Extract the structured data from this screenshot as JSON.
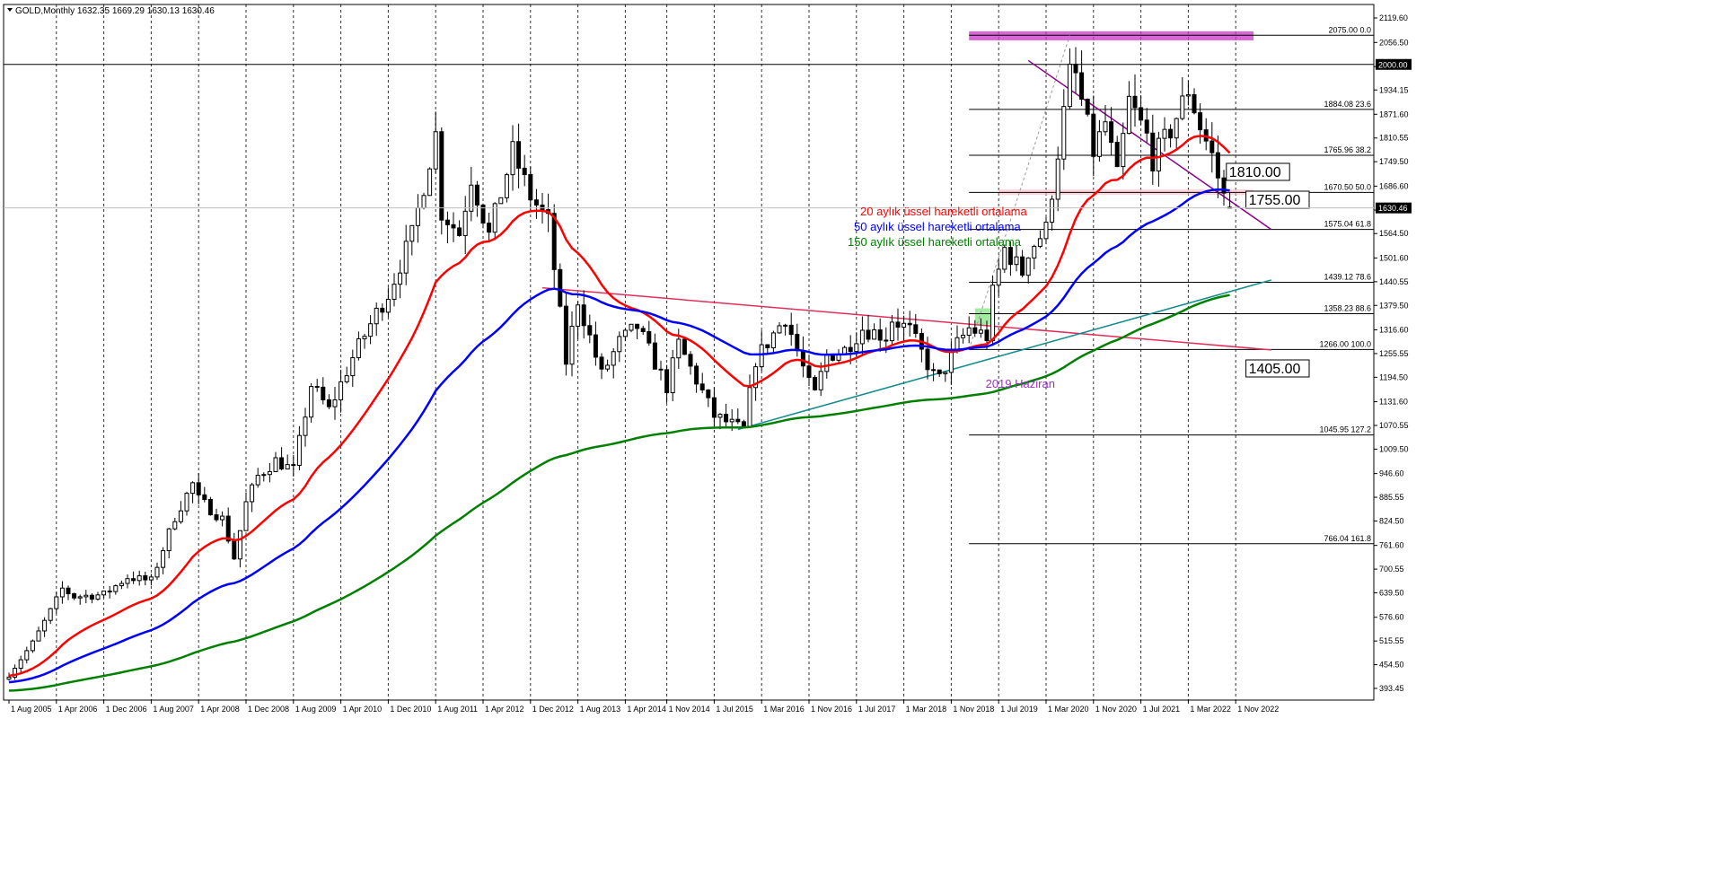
{
  "symbol_header": "GOLD,Monthly  1632.35 1669.29 1630.13 1630.46",
  "current_price_label": "1630.46",
  "colors": {
    "bull": "#000000",
    "bear": "#000000",
    "ema20": "#ff0000",
    "ema50": "#0000ff",
    "ema150": "#008000",
    "grid": "#000000",
    "fib": "#000000",
    "trendline_red": "#e0305a",
    "trendline_purple": "#8b008b",
    "trendline_teal": "#138c8c",
    "resistance_zone": "#cc33cc",
    "support_zone": "#ffb6c1",
    "label_2019": "#9932cc"
  },
  "legend": [
    {
      "text": "20 aylık üssel hareketli ortalama",
      "color": "#ff0000"
    },
    {
      "text": "50 aylık üssel hareketli ortalama",
      "color": "#0000ff"
    },
    {
      "text": "150 aylık üssel hareketli ortalama",
      "color": "#008000"
    }
  ],
  "annotations": {
    "level_2000": "2000.00",
    "label_1810": "1810.00",
    "label_1755": "1755.00",
    "label_1405": "1405.00",
    "label_2019": "2019 Haziran"
  },
  "fib_levels": [
    {
      "price": 2075.0,
      "label": "2075.00 0.0"
    },
    {
      "price": 1884.08,
      "label": "1884.08 23.6"
    },
    {
      "price": 1765.96,
      "label": "1765.96 38.2"
    },
    {
      "price": 1670.5,
      "label": "1670.50 50.0"
    },
    {
      "price": 1575.04,
      "label": "1575.04 61.8"
    },
    {
      "price": 1439.12,
      "label": "1439.12 78.6"
    },
    {
      "price": 1358.23,
      "label": "1358.23 88.6"
    },
    {
      "price": 1266.0,
      "label": "1266.00 100.0"
    },
    {
      "price": 1045.95,
      "label": "1045.95 127.2"
    },
    {
      "price": 766.04,
      "label": "766.04 161.8"
    }
  ],
  "chart_data": {
    "type": "candlestick",
    "title": "GOLD,Monthly",
    "y_ticks": [
      2119.6,
      2056.5,
      1994.4,
      1934.15,
      1871.6,
      1810.55,
      1749.5,
      1686.6,
      1625.05,
      1564.5,
      1501.6,
      1440.55,
      1379.5,
      1316.6,
      1255.55,
      1194.5,
      1131.6,
      1070.55,
      1009.5,
      946.6,
      885.55,
      824.5,
      761.6,
      700.55,
      639.5,
      576.6,
      515.55,
      454.5,
      393.45
    ],
    "y_tick_labels": [
      "2119.60",
      "2056.50",
      "1994.40",
      "1934.15",
      "1871.60",
      "1810.55",
      "1749.50",
      "1686.60",
      "1625.05",
      "1564.50",
      "1501.60",
      "1440.55",
      "1379.50",
      "1316.60",
      "1255.55",
      "1194.50",
      "1131.60",
      "1070.55",
      "1009.50",
      "946.60",
      "885.55",
      "824.50",
      "761.60",
      "700.55",
      "639.50",
      "576.60",
      "515.55",
      "454.50",
      "393.45"
    ],
    "ylim": [
      380,
      2150
    ],
    "x_ticks": [
      "1 Aug 2005",
      "1 Apr 2006",
      "1 Dec 2006",
      "1 Aug 2007",
      "1 Apr 2008",
      "1 Dec 2008",
      "1 Aug 2009",
      "1 Apr 2010",
      "1 Dec 2010",
      "1 Aug 2011",
      "1 Apr 2012",
      "1 Dec 2012",
      "1 Aug 2013",
      "1 Apr 2014",
      "1 Nov 2014",
      "1 Jul 2015",
      "1 Mar 2016",
      "1 Nov 2016",
      "1 Jul 2017",
      "1 Mar 2018",
      "1 Nov 2018",
      "1 Jul 2019",
      "1 Mar 2020",
      "1 Nov 2020",
      "1 Jul 2021",
      "1 Mar 2022",
      "1 Nov 2022"
    ],
    "anchors": [
      [
        "2005-08",
        430
      ],
      [
        "2005-12",
        510
      ],
      [
        "2006-04",
        620
      ],
      [
        "2006-05",
        650
      ],
      [
        "2006-07",
        630
      ],
      [
        "2006-12",
        635
      ],
      [
        "2007-04",
        680
      ],
      [
        "2007-08",
        670
      ],
      [
        "2007-12",
        835
      ],
      [
        "2008-03",
        920
      ],
      [
        "2008-04",
        880
      ],
      [
        "2008-08",
        830
      ],
      [
        "2008-10",
        730
      ],
      [
        "2008-12",
        870
      ],
      [
        "2009-02",
        940
      ],
      [
        "2009-05",
        980
      ],
      [
        "2009-08",
        955
      ],
      [
        "2009-11",
        1175
      ],
      [
        "2010-02",
        1110
      ],
      [
        "2010-06",
        1245
      ],
      [
        "2010-10",
        1360
      ],
      [
        "2010-12",
        1410
      ],
      [
        "2011-04",
        1560
      ],
      [
        "2011-08",
        1820
      ],
      [
        "2011-09",
        1620
      ],
      [
        "2011-12",
        1565
      ],
      [
        "2012-02",
        1710
      ],
      [
        "2012-05",
        1560
      ],
      [
        "2012-09",
        1775
      ],
      [
        "2012-12",
        1660
      ],
      [
        "2013-03",
        1595
      ],
      [
        "2013-06",
        1235
      ],
      [
        "2013-08",
        1395
      ],
      [
        "2013-12",
        1200
      ],
      [
        "2014-03",
        1285
      ],
      [
        "2014-06",
        1325
      ],
      [
        "2014-11",
        1170
      ],
      [
        "2015-01",
        1280
      ],
      [
        "2015-07",
        1095
      ],
      [
        "2015-11",
        1065
      ],
      [
        "2015-12",
        1060
      ],
      [
        "2016-02",
        1240
      ],
      [
        "2016-07",
        1350
      ],
      [
        "2016-11",
        1175
      ],
      [
        "2016-12",
        1150
      ],
      [
        "2017-02",
        1250
      ],
      [
        "2017-05",
        1265
      ],
      [
        "2017-08",
        1320
      ],
      [
        "2017-12",
        1300
      ],
      [
        "2018-01",
        1345
      ],
      [
        "2018-04",
        1315
      ],
      [
        "2018-08",
        1200
      ],
      [
        "2018-09",
        1190
      ],
      [
        "2018-12",
        1280
      ],
      [
        "2019-02",
        1320
      ],
      [
        "2019-05",
        1300
      ],
      [
        "2019-06",
        1410
      ],
      [
        "2019-08",
        1525
      ],
      [
        "2019-11",
        1465
      ],
      [
        "2019-12",
        1520
      ],
      [
        "2020-03",
        1575
      ],
      [
        "2020-07",
        1975
      ],
      [
        "2020-08",
        1970
      ],
      [
        "2020-11",
        1775
      ],
      [
        "2021-01",
        1850
      ],
      [
        "2021-03",
        1710
      ],
      [
        "2021-05",
        1905
      ],
      [
        "2021-08",
        1815
      ],
      [
        "2021-09",
        1755
      ],
      [
        "2021-12",
        1830
      ],
      [
        "2022-03",
        1935
      ],
      [
        "2022-05",
        1840
      ],
      [
        "2022-07",
        1765
      ],
      [
        "2022-08",
        1710
      ],
      [
        "2022-09",
        1660
      ],
      [
        "2022-10",
        1630
      ]
    ],
    "last_candle": {
      "open": 1632.35,
      "high": 1669.29,
      "low": 1630.13,
      "close": 1630.46
    },
    "series": [
      {
        "name": "20 aylık üssel hareketli ortalama",
        "period": 20
      },
      {
        "name": "50 aylık üssel hareketli ortalama",
        "period": 50
      },
      {
        "name": "150 aylık üssel hareketli ortalama",
        "period": 150
      }
    ],
    "trendlines": [
      {
        "name": "red-falling-resistance",
        "from": [
          "2013-02",
          1425
        ],
        "to": [
          "2023-05",
          1265
        ]
      },
      {
        "name": "purple-falling-resistance",
        "from": [
          "2019-12",
          2010
        ],
        "to": [
          "2023-05",
          1575
        ]
      },
      {
        "name": "teal-rising-support",
        "from": [
          "2015-11",
          1060
        ],
        "to": [
          "2023-05",
          1445
        ]
      }
    ],
    "zones": [
      {
        "name": "2075-resistance-zone",
        "from": "2019-02",
        "to": "2023-02",
        "low": 2062,
        "high": 2085
      },
      {
        "name": "1670-support-zone",
        "from": "2019-07",
        "to": "2023-02",
        "low": 1664,
        "high": 1678
      },
      {
        "name": "2019-haziran-zone",
        "from": "2019-03",
        "to": "2019-06",
        "low": 1330,
        "high": 1372
      }
    ],
    "grid": true,
    "fib_start": "2019-02"
  }
}
